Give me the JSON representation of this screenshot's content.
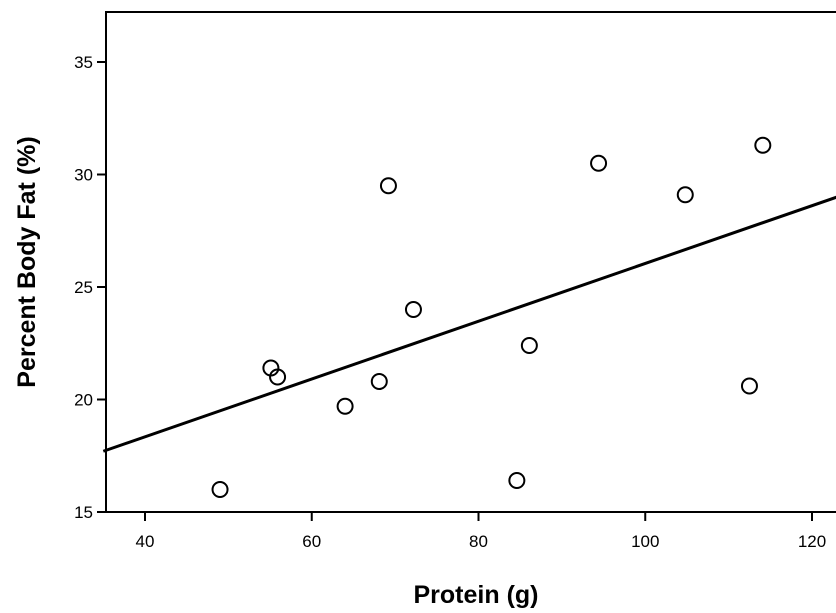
{
  "chart_data": {
    "type": "scatter",
    "title": "",
    "xlabel": "Protein (g)",
    "ylabel": "Percent Body Fat (%)",
    "xlim": [
      35,
      123
    ],
    "ylim": [
      15,
      37
    ],
    "x_ticks": [
      40,
      60,
      80,
      100,
      120
    ],
    "y_ticks": [
      15,
      20,
      25,
      30,
      35
    ],
    "grid": false,
    "legend": "none",
    "marker": "open-circle",
    "colors": {
      "line": "#000000",
      "marker": "#000000",
      "background": "#ffffff"
    },
    "points": [
      {
        "x": 49.0,
        "y": 16.0
      },
      {
        "x": 55.1,
        "y": 21.4
      },
      {
        "x": 55.9,
        "y": 21.0
      },
      {
        "x": 64.0,
        "y": 19.7
      },
      {
        "x": 68.1,
        "y": 20.8
      },
      {
        "x": 69.2,
        "y": 29.5
      },
      {
        "x": 72.2,
        "y": 24.0
      },
      {
        "x": 84.6,
        "y": 16.4
      },
      {
        "x": 86.1,
        "y": 22.4
      },
      {
        "x": 94.4,
        "y": 30.5
      },
      {
        "x": 104.8,
        "y": 29.1
      },
      {
        "x": 112.5,
        "y": 20.6
      },
      {
        "x": 114.1,
        "y": 31.3
      }
    ],
    "fit_line": {
      "type": "linear",
      "x": [
        35,
        123
      ],
      "y": [
        17.7,
        29.0
      ]
    }
  }
}
